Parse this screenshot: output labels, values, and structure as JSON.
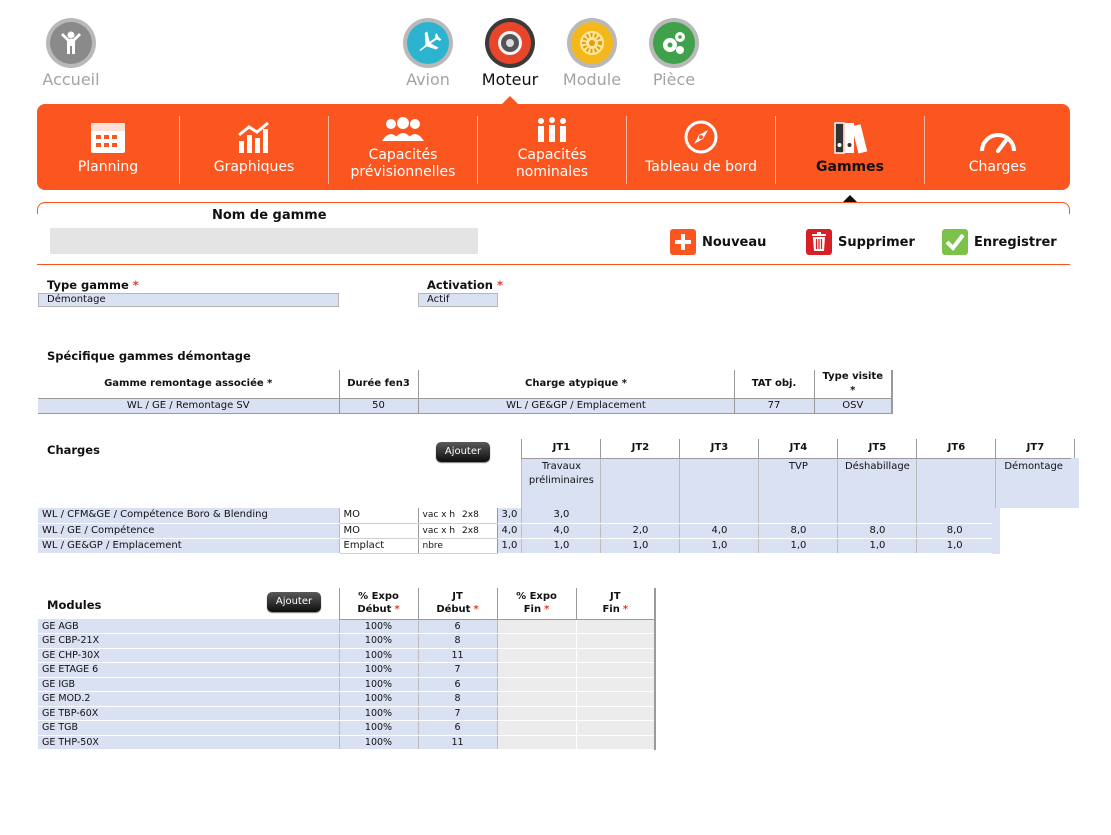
{
  "top_nav": {
    "items": [
      {
        "key": "accueil",
        "label": "Accueil",
        "active": false
      },
      {
        "key": "avion",
        "label": "Avion",
        "active": false
      },
      {
        "key": "moteur",
        "label": "Moteur",
        "active": true
      },
      {
        "key": "module",
        "label": "Module",
        "active": false
      },
      {
        "key": "piece",
        "label": "Pièce",
        "active": false
      }
    ]
  },
  "menu": {
    "items": [
      {
        "key": "planning",
        "label1": "Planning",
        "label2": ""
      },
      {
        "key": "graphiques",
        "label1": "Graphiques",
        "label2": ""
      },
      {
        "key": "capacites-prev",
        "label1": "Capacités",
        "label2": "prévisionnelles"
      },
      {
        "key": "capacites-nom",
        "label1": "Capacités",
        "label2": "nominales"
      },
      {
        "key": "tableau",
        "label1": "Tableau de bord",
        "label2": ""
      },
      {
        "key": "gammes",
        "label1": "Gammes",
        "label2": "",
        "active": true
      },
      {
        "key": "charges",
        "label1": "Charges",
        "label2": ""
      }
    ]
  },
  "header": {
    "name_label": "Nom de gamme",
    "name_value": "",
    "btn_new": "Nouveau",
    "btn_delete": "Supprimer",
    "btn_save": "Enregistrer"
  },
  "type_gamme": {
    "label": "Type gamme",
    "required": "*",
    "value": "Démontage"
  },
  "activation": {
    "label": "Activation",
    "required": "*",
    "value": "Actif"
  },
  "specifique": {
    "title": "Spécifique gammes démontage",
    "headers": [
      "Gamme remontage associée *",
      "Durée fen3",
      "Charge atypique *",
      "TAT obj.",
      "Type visite *"
    ],
    "row": [
      "WL / GE / Remontage SV",
      "50",
      "WL / GE&GP / Emplacement",
      "77",
      "OSV"
    ]
  },
  "charges": {
    "title": "Charges",
    "add_button": "Ajouter",
    "jt_headers": [
      "JT1",
      "JT2",
      "JT3",
      "JT4",
      "JT5",
      "JT6",
      "JT7"
    ],
    "jt_phases": [
      "Travaux préliminaires",
      "",
      "",
      "TVP",
      "Déshabillage",
      "",
      "Démontage"
    ],
    "rows": [
      {
        "name": "WL / CFM&GE / Compétence Boro & Blending",
        "type": "MO",
        "unit": "vac x h",
        "factor": "2x8",
        "values": [
          "3,0",
          "3,0",
          "",
          "",
          "",
          "",
          ""
        ]
      },
      {
        "name": "WL / GE / Compétence",
        "type": "MO",
        "unit": "vac x h",
        "factor": "2x8",
        "values": [
          "4,0",
          "4,0",
          "2,0",
          "4,0",
          "8,0",
          "8,0",
          "8,0"
        ]
      },
      {
        "name": "WL / GE&GP / Emplacement",
        "type": "Emplact",
        "unit": "nbre",
        "factor": "",
        "values": [
          "1,0",
          "1,0",
          "1,0",
          "1,0",
          "1,0",
          "1,0",
          "1,0"
        ]
      }
    ]
  },
  "modules": {
    "title": "Modules",
    "add_button": "Ajouter",
    "headers": [
      {
        "l1": "% Expo",
        "l2": "Début"
      },
      {
        "l1": "JT",
        "l2": "Début"
      },
      {
        "l1": "% Expo",
        "l2": "Fin"
      },
      {
        "l1": "JT",
        "l2": "Fin"
      }
    ],
    "rows": [
      {
        "name": "GE AGB",
        "expo": "100%",
        "jt": "6"
      },
      {
        "name": "GE CBP-21X",
        "expo": "100%",
        "jt": "8"
      },
      {
        "name": "GE CHP-30X",
        "expo": "100%",
        "jt": "11"
      },
      {
        "name": "GE ETAGE 6",
        "expo": "100%",
        "jt": "7"
      },
      {
        "name": "GE IGB",
        "expo": "100%",
        "jt": "6"
      },
      {
        "name": "GE MOD.2",
        "expo": "100%",
        "jt": "8"
      },
      {
        "name": "GE TBP-60X",
        "expo": "100%",
        "jt": "7"
      },
      {
        "name": "GE TGB",
        "expo": "100%",
        "jt": "6"
      },
      {
        "name": "GE THP-50X",
        "expo": "100%",
        "jt": "11"
      }
    ]
  },
  "colors": {
    "accent": "#fb5520",
    "field": "#d9e1f2",
    "grey_cell": "#ececec"
  }
}
